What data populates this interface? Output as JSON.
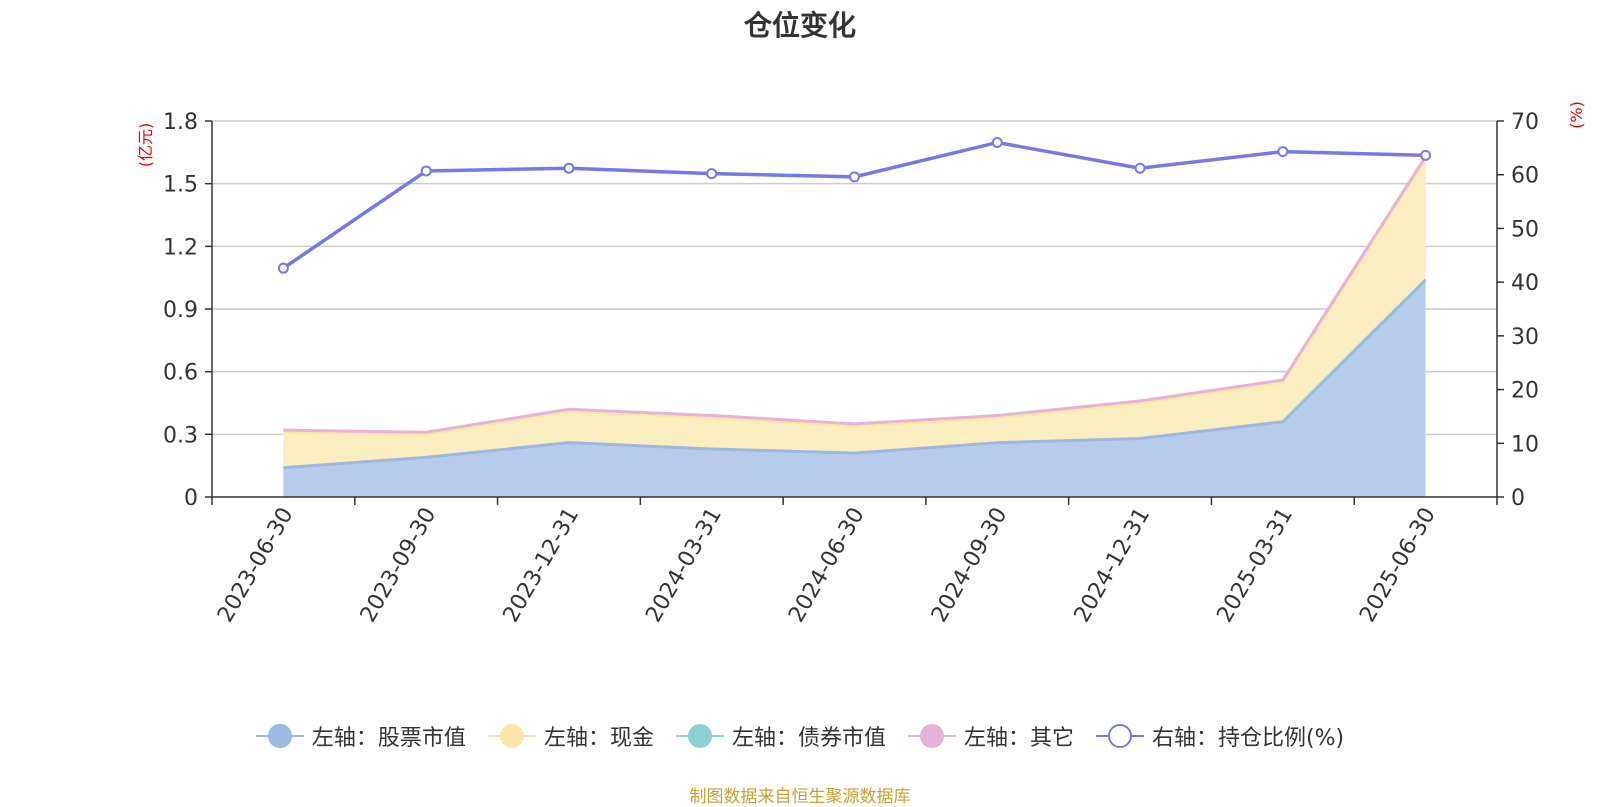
{
  "title": "仓位变化",
  "source_note": "制图数据来自恒生聚源数据库",
  "chart_data": {
    "type": "area",
    "title": "仓位变化",
    "categories": [
      "2023-06-30",
      "2023-09-30",
      "2023-12-31",
      "2024-03-31",
      "2024-06-30",
      "2024-09-30",
      "2024-12-31",
      "2025-03-31",
      "2025-06-30"
    ],
    "left_axis": {
      "unit": "(亿元)",
      "ylim": [
        0,
        1.8
      ],
      "ticks": [
        "0",
        "0.3",
        "0.6",
        "0.9",
        "1.2",
        "1.5",
        "1.8"
      ]
    },
    "right_axis": {
      "unit": "(%)",
      "ylim": [
        0,
        70
      ],
      "ticks": [
        "0",
        "10",
        "20",
        "30",
        "40",
        "50",
        "60",
        "70"
      ]
    },
    "series": [
      {
        "name": "左轴：股票市值",
        "axis": "left",
        "stack": true,
        "color": "#9bb8e0",
        "fill": "#b7cceb",
        "values": [
          0.14,
          0.19,
          0.26,
          0.23,
          0.21,
          0.26,
          0.28,
          0.36,
          1.04
        ]
      },
      {
        "name": "左轴：现金",
        "axis": "left",
        "stack": true,
        "color": "#f8e7a8",
        "fill": "#faedbf",
        "values": [
          0.17,
          0.11,
          0.15,
          0.15,
          0.13,
          0.12,
          0.17,
          0.19,
          0.58
        ]
      },
      {
        "name": "左轴：债券市值",
        "axis": "left",
        "stack": true,
        "color": "#8ecfd1",
        "fill": "#8ecfd1",
        "values": [
          0,
          0,
          0,
          0,
          0,
          0,
          0,
          0,
          0
        ]
      },
      {
        "name": "左轴：其它",
        "axis": "left",
        "stack": true,
        "color": "#e6b3d8",
        "fill": "#e6b3d8",
        "values": [
          0.01,
          0.01,
          0.01,
          0.01,
          0.01,
          0.01,
          0.01,
          0.01,
          0.01
        ]
      },
      {
        "name": "右轴：持仓比例(%)",
        "axis": "right",
        "stack": false,
        "color": "#7478e8",
        "values": [
          42.6,
          60.7,
          61.2,
          60.2,
          59.6,
          66.0,
          61.2,
          64.3,
          63.6
        ]
      }
    ],
    "grid": true,
    "legend_position": "bottom"
  }
}
